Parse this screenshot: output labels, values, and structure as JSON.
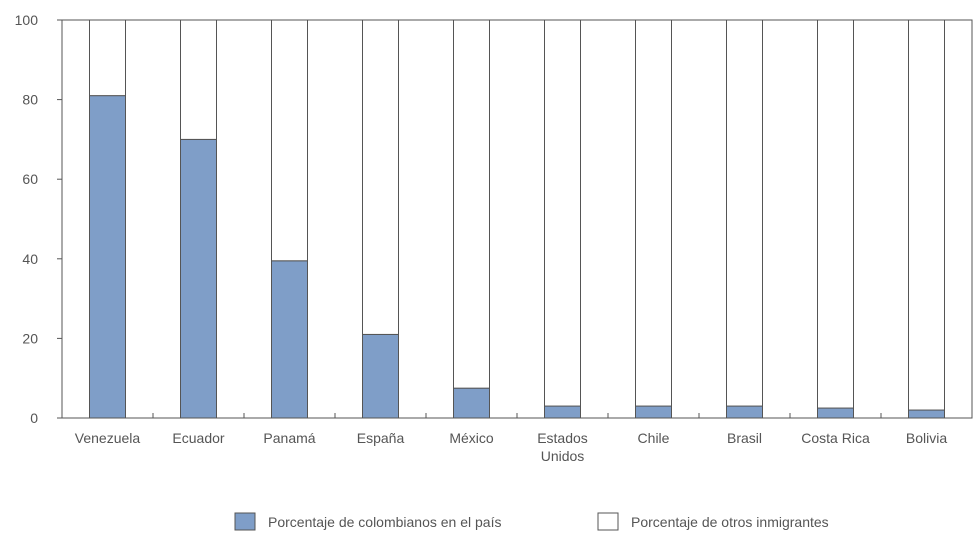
{
  "chart_data": {
    "type": "bar",
    "stacked": true,
    "title": "",
    "xlabel": "",
    "ylabel": "",
    "ylim": [
      0,
      100
    ],
    "yticks": [
      0,
      20,
      40,
      60,
      80,
      100
    ],
    "grid": false,
    "legend_position": "bottom",
    "categories": [
      [
        "Venezuela"
      ],
      [
        "Ecuador"
      ],
      [
        "Panamá"
      ],
      [
        "España"
      ],
      [
        "México"
      ],
      [
        "Estados",
        "Unidos"
      ],
      [
        "Chile"
      ],
      [
        "Brasil"
      ],
      [
        "Costa Rica"
      ],
      [
        "Bolivia"
      ]
    ],
    "series": [
      {
        "name": "Porcentaje de colombianos en el país",
        "color": "#7f9ec8",
        "values": [
          81,
          70,
          39.5,
          21,
          7.5,
          3,
          3,
          3,
          2.5,
          2
        ]
      },
      {
        "name": "Porcentaje de otros inmigrantes",
        "color": "#ffffff",
        "values": [
          19,
          30,
          60.5,
          79,
          92.5,
          97,
          97,
          97,
          97.5,
          98
        ]
      }
    ]
  }
}
